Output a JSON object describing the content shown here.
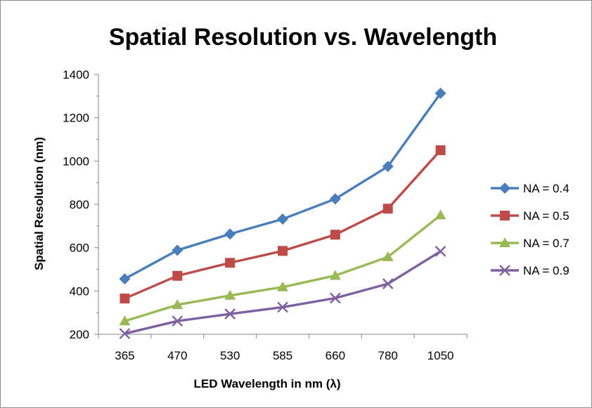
{
  "chart_data": {
    "type": "line",
    "title": "Spatial Resolution vs. Wavelength",
    "xlabel": "LED Wavelength in nm (λ)",
    "ylabel": "Spatial Resolution (nm)",
    "categories": [
      "365",
      "470",
      "530",
      "585",
      "660",
      "780",
      "1050"
    ],
    "ylim": [
      200,
      1400
    ],
    "yticks": [
      200,
      400,
      600,
      800,
      1000,
      1200,
      1400
    ],
    "grid": false,
    "legend_position": "right",
    "series": [
      {
        "name": "NA = 0.4",
        "color": "#4a7ebb",
        "marker": "diamond",
        "values": [
          456,
          588,
          663,
          732,
          825,
          975,
          1313
        ]
      },
      {
        "name": "NA = 0.5",
        "color": "#be4b48",
        "marker": "square",
        "values": [
          365,
          470,
          530,
          585,
          660,
          780,
          1050
        ]
      },
      {
        "name": "NA = 0.7",
        "color": "#98b954",
        "marker": "triangle",
        "values": [
          261,
          336,
          379,
          418,
          471,
          557,
          750
        ]
      },
      {
        "name": "NA = 0.9",
        "color": "#7d60a0",
        "marker": "x",
        "values": [
          203,
          261,
          294,
          325,
          367,
          433,
          583
        ]
      }
    ]
  }
}
